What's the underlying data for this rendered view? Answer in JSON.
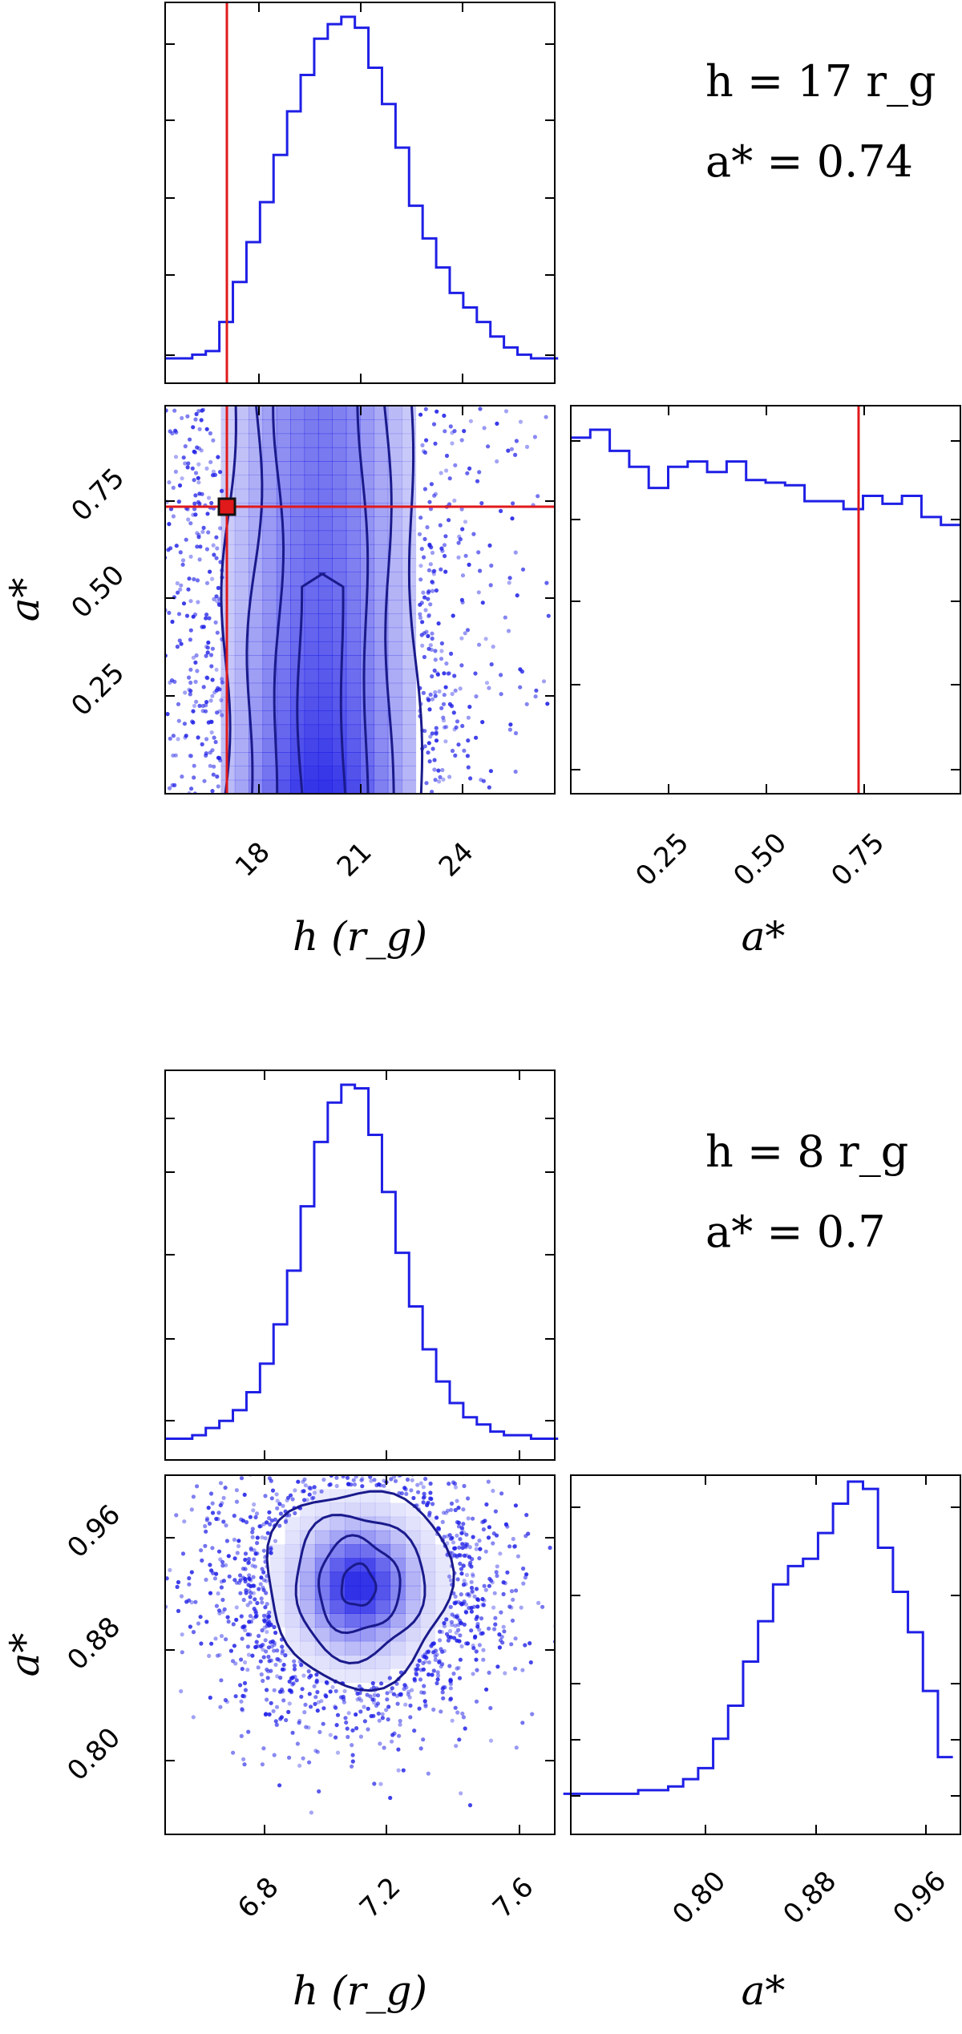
{
  "chart_data": [
    {
      "type": "corner",
      "annotation": {
        "line1": "h = 17 r_g",
        "line2": "a* = 0.74"
      },
      "parameters": [
        "h",
        "a*"
      ],
      "truth": {
        "h": 17,
        "a": 0.74
      },
      "hist_h": {
        "xlim": [
          15,
          26.5
        ],
        "x": [
          15.2,
          15.6,
          16.0,
          16.4,
          16.8,
          17.2,
          17.6,
          18.0,
          18.4,
          18.8,
          19.2,
          19.6,
          20.0,
          20.4,
          20.8,
          21.2,
          21.6,
          22.0,
          22.4,
          22.8,
          23.2,
          23.6,
          24.0,
          24.4,
          24.8,
          25.2,
          25.6,
          26.0,
          26.4
        ],
        "counts": [
          2,
          2,
          3,
          4,
          12,
          23,
          34,
          45,
          58,
          70,
          80,
          90,
          94,
          96,
          93,
          82,
          72,
          60,
          44,
          35,
          27,
          20,
          16,
          12,
          8,
          5,
          3,
          2,
          2
        ]
      },
      "hist_a": {
        "xlim": [
          0,
          1
        ],
        "x": [
          0.025,
          0.075,
          0.125,
          0.175,
          0.225,
          0.275,
          0.325,
          0.375,
          0.425,
          0.475,
          0.525,
          0.575,
          0.625,
          0.675,
          0.725,
          0.775,
          0.825,
          0.875,
          0.925,
          0.975
        ],
        "counts": [
          97,
          100,
          92,
          86,
          78,
          86,
          88,
          84,
          88,
          81,
          80,
          79,
          73,
          73,
          70,
          75,
          72,
          75,
          67,
          64
        ]
      },
      "joint": {
        "xlabel": "h (r_g)",
        "ylabel": "a*",
        "xlim": [
          15,
          26.5
        ],
        "ylim": [
          0,
          1
        ],
        "xticks": [
          "18",
          "21",
          "24"
        ],
        "yticks": [
          "0.25",
          "0.50",
          "0.75"
        ],
        "contour_levels": [
          {
            "h_center": 19.6,
            "h_halfwidth": 2.9
          },
          {
            "h_center": 19.6,
            "h_halfwidth": 2.1
          },
          {
            "h_center": 19.6,
            "h_halfwidth": 1.35
          },
          {
            "h_center": 19.6,
            "h_halfwidth": 0.65
          }
        ]
      },
      "marginal_a_xlabel": "a*",
      "marginal_a_xticks": [
        "0.25",
        "0.50",
        "0.75"
      ]
    },
    {
      "type": "corner",
      "annotation": {
        "line1": "h = 8 r_g",
        "line2": "a* = 0.7"
      },
      "parameters": [
        "h",
        "a*"
      ],
      "hist_h": {
        "xlim": [
          6.5,
          7.65
        ],
        "x": [
          6.52,
          6.56,
          6.6,
          6.64,
          6.68,
          6.72,
          6.76,
          6.8,
          6.84,
          6.88,
          6.92,
          6.96,
          7.0,
          7.04,
          7.08,
          7.12,
          7.16,
          7.2,
          7.24,
          7.28,
          7.32,
          7.36,
          7.4,
          7.44,
          7.48,
          7.52,
          7.56,
          7.6,
          7.64
        ],
        "counts": [
          1,
          1,
          2,
          4,
          6,
          9,
          14,
          22,
          33,
          48,
          66,
          84,
          95,
          100,
          99,
          86,
          70,
          53,
          38,
          26,
          17,
          11,
          7,
          5,
          3,
          2,
          2,
          1,
          1
        ]
      },
      "hist_a": {
        "xlim": [
          0.73,
          0.99
        ],
        "x": [
          0.73,
          0.74,
          0.75,
          0.76,
          0.77,
          0.78,
          0.79,
          0.8,
          0.81,
          0.82,
          0.83,
          0.84,
          0.85,
          0.86,
          0.87,
          0.88,
          0.89,
          0.9,
          0.91,
          0.92,
          0.93,
          0.94,
          0.95,
          0.96,
          0.97,
          0.98
        ],
        "counts": [
          1,
          1,
          1,
          1,
          1,
          2,
          2,
          3,
          5,
          8,
          16,
          25,
          37,
          48,
          58,
          63,
          65,
          72,
          80,
          86,
          84,
          68,
          56,
          45,
          29,
          11
        ]
      },
      "joint": {
        "xlabel": "h (r_g)",
        "ylabel": "a*",
        "xlim": [
          6.5,
          7.65
        ],
        "ylim": [
          0.73,
          0.99
        ],
        "xticks": [
          "6.8",
          "7.2",
          "7.6"
        ],
        "yticks": [
          "0.80",
          "0.88",
          "0.96"
        ],
        "contour_levels": [
          {
            "h_center": 7.07,
            "a_center": 0.91,
            "h_radius": 0.27,
            "a_radius": 0.071
          },
          {
            "h_center": 7.07,
            "a_center": 0.91,
            "h_radius": 0.19,
            "a_radius": 0.052
          },
          {
            "h_center": 7.07,
            "a_center": 0.91,
            "h_radius": 0.12,
            "a_radius": 0.034
          },
          {
            "h_center": 7.07,
            "a_center": 0.91,
            "h_radius": 0.05,
            "a_radius": 0.015
          }
        ]
      },
      "marginal_a_xlabel": "a*",
      "marginal_a_xticks": [
        "0.80",
        "0.88",
        "0.96"
      ]
    }
  ],
  "colors": {
    "posterior": "#1f1fe6",
    "truth": "#e0191b",
    "contour": "#1a1a8c"
  }
}
